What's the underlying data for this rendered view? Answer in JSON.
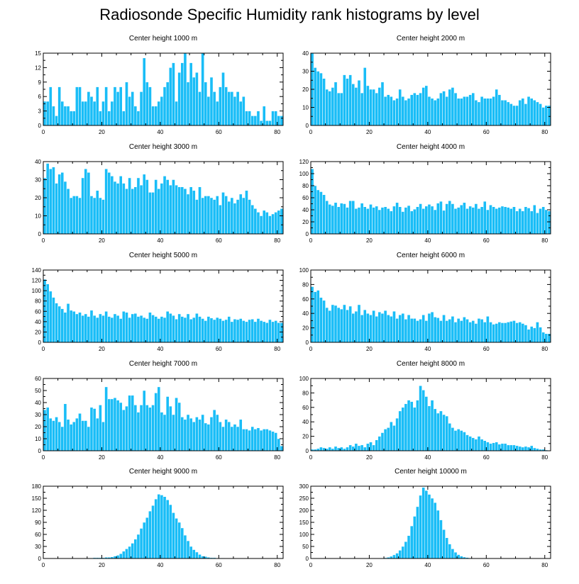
{
  "title": "Radiosonde Specific Humidity rank histograms by level",
  "style": {
    "bar_color": "#19bdf7",
    "bar_edge": "#ffffff",
    "axis_color": "#000000"
  },
  "chart_data": [
    {
      "type": "bar",
      "title": "Center height 1000 m",
      "xlabel": "",
      "ylabel": "",
      "xlim": [
        0,
        82
      ],
      "ylim": [
        0,
        15
      ],
      "xticks": [
        0,
        20,
        40,
        60,
        80
      ],
      "yticks": [
        0,
        3,
        6,
        9,
        12,
        15
      ],
      "values": [
        5,
        5,
        8,
        4,
        2,
        8,
        5,
        4,
        4,
        3,
        3,
        8,
        8,
        5,
        5,
        7,
        6,
        5,
        8,
        3,
        5,
        8,
        3,
        5,
        8,
        7,
        8,
        3,
        9,
        6,
        7,
        4,
        3,
        7,
        14,
        9,
        8,
        4,
        4,
        5,
        6,
        8,
        9,
        12,
        13,
        5,
        11,
        13,
        15,
        9,
        13,
        10,
        11,
        7,
        15,
        9,
        6,
        10,
        7,
        5,
        8,
        11,
        8,
        7,
        7,
        6,
        7,
        5,
        6,
        3,
        3,
        2,
        2,
        3,
        1,
        4,
        1,
        1,
        3,
        3,
        2,
        2
      ]
    },
    {
      "type": "bar",
      "title": "Center height 2000 m",
      "xlabel": "",
      "ylabel": "",
      "xlim": [
        0,
        82
      ],
      "ylim": [
        0,
        40
      ],
      "xticks": [
        0,
        20,
        40,
        60,
        80
      ],
      "yticks": [
        0,
        10,
        20,
        30,
        40
      ],
      "values": [
        40,
        32,
        30,
        29,
        26,
        20,
        19,
        21,
        24,
        18,
        18,
        28,
        26,
        28,
        23,
        21,
        25,
        18,
        32,
        22,
        20,
        20,
        18,
        21,
        24,
        16,
        17,
        16,
        14,
        15,
        20,
        16,
        14,
        15,
        17,
        18,
        17,
        18,
        21,
        22,
        16,
        15,
        14,
        15,
        18,
        19,
        16,
        20,
        21,
        18,
        15,
        15,
        16,
        16,
        17,
        18,
        14,
        13,
        16,
        15,
        15,
        15,
        16,
        20,
        17,
        14,
        14,
        13,
        12,
        11,
        11,
        14,
        15,
        12,
        16,
        15,
        14,
        13,
        12,
        10,
        11,
        11
      ]
    },
    {
      "type": "bar",
      "title": "Center height 3000 m",
      "xlabel": "",
      "ylabel": "",
      "xlim": [
        0,
        82
      ],
      "ylim": [
        0,
        40
      ],
      "xticks": [
        0,
        20,
        40,
        60,
        80
      ],
      "yticks": [
        0,
        10,
        20,
        30,
        40
      ],
      "values": [
        31,
        39,
        36,
        37,
        28,
        33,
        34,
        29,
        25,
        20,
        21,
        21,
        20,
        31,
        36,
        34,
        21,
        20,
        24,
        20,
        19,
        36,
        34,
        32,
        29,
        28,
        32,
        28,
        25,
        31,
        25,
        26,
        31,
        27,
        33,
        30,
        23,
        23,
        30,
        25,
        28,
        32,
        30,
        27,
        30,
        27,
        26,
        26,
        25,
        22,
        26,
        24,
        19,
        26,
        20,
        21,
        21,
        20,
        19,
        21,
        16,
        23,
        21,
        18,
        20,
        17,
        19,
        22,
        20,
        24,
        19,
        16,
        14,
        12,
        10,
        13,
        12,
        10,
        11,
        12,
        13,
        14
      ]
    },
    {
      "type": "bar",
      "title": "Center height 4000 m",
      "xlabel": "",
      "ylabel": "",
      "xlim": [
        0,
        82
      ],
      "ylim": [
        0,
        120
      ],
      "xticks": [
        0,
        20,
        40,
        60,
        80
      ],
      "yticks": [
        0,
        20,
        40,
        60,
        80,
        100,
        120
      ],
      "values": [
        108,
        80,
        73,
        70,
        65,
        55,
        49,
        47,
        52,
        45,
        51,
        50,
        44,
        55,
        55,
        42,
        44,
        51,
        45,
        42,
        49,
        44,
        46,
        40,
        44,
        45,
        42,
        38,
        46,
        52,
        45,
        37,
        44,
        47,
        38,
        41,
        45,
        50,
        42,
        46,
        49,
        46,
        40,
        51,
        54,
        39,
        50,
        55,
        50,
        42,
        44,
        48,
        52,
        42,
        46,
        44,
        50,
        42,
        45,
        54,
        40,
        48,
        45,
        42,
        44,
        46,
        45,
        44,
        42,
        45,
        38,
        42,
        38,
        45,
        43,
        38,
        48,
        35,
        42,
        45,
        40,
        38
      ]
    },
    {
      "type": "bar",
      "title": "Center height 5000 m",
      "xlabel": "",
      "ylabel": "",
      "xlim": [
        0,
        82
      ],
      "ylim": [
        0,
        140
      ],
      "xticks": [
        0,
        20,
        40,
        60,
        80
      ],
      "yticks": [
        0,
        20,
        40,
        60,
        80,
        100,
        120,
        140
      ],
      "values": [
        122,
        113,
        99,
        87,
        76,
        70,
        65,
        58,
        75,
        62,
        60,
        55,
        58,
        52,
        55,
        50,
        62,
        52,
        48,
        55,
        52,
        60,
        50,
        48,
        55,
        52,
        46,
        60,
        58,
        48,
        55,
        56,
        50,
        52,
        48,
        46,
        58,
        53,
        50,
        46,
        50,
        48,
        60,
        56,
        52,
        45,
        55,
        50,
        48,
        55,
        45,
        48,
        56,
        50,
        46,
        42,
        50,
        47,
        44,
        48,
        46,
        42,
        44,
        50,
        40,
        45,
        44,
        46,
        42,
        40,
        44,
        45,
        40,
        46,
        42,
        40,
        38,
        44,
        40,
        42,
        38,
        38
      ]
    },
    {
      "type": "bar",
      "title": "Center height 6000 m",
      "xlabel": "",
      "ylabel": "",
      "xlim": [
        0,
        82
      ],
      "ylim": [
        0,
        100
      ],
      "xticks": [
        0,
        20,
        40,
        60,
        80
      ],
      "yticks": [
        0,
        20,
        40,
        60,
        80,
        100
      ],
      "values": [
        77,
        70,
        72,
        62,
        58,
        48,
        44,
        52,
        51,
        48,
        46,
        52,
        45,
        50,
        40,
        43,
        52,
        38,
        45,
        40,
        38,
        44,
        36,
        42,
        40,
        44,
        38,
        36,
        43,
        33,
        38,
        40,
        32,
        38,
        33,
        33,
        30,
        32,
        38,
        30,
        40,
        42,
        35,
        34,
        30,
        38,
        30,
        32,
        36,
        28,
        33,
        30,
        35,
        32,
        28,
        30,
        26,
        33,
        32,
        28,
        36,
        28,
        25,
        26,
        28,
        27,
        27,
        28,
        29,
        30,
        27,
        28,
        26,
        24,
        18,
        22,
        20,
        28,
        21,
        14,
        12,
        12
      ]
    },
    {
      "type": "bar",
      "title": "Center height 7000 m",
      "xlabel": "",
      "ylabel": "",
      "xlim": [
        0,
        82
      ],
      "ylim": [
        0,
        60
      ],
      "xticks": [
        0,
        20,
        40,
        60,
        80
      ],
      "yticks": [
        0,
        10,
        20,
        30,
        40,
        50,
        60
      ],
      "values": [
        34,
        36,
        27,
        25,
        28,
        24,
        20,
        39,
        26,
        22,
        24,
        27,
        31,
        25,
        25,
        20,
        36,
        35,
        27,
        38,
        24,
        53,
        43,
        43,
        44,
        42,
        40,
        34,
        37,
        46,
        46,
        38,
        32,
        38,
        50,
        38,
        36,
        38,
        48,
        53,
        32,
        30,
        45,
        37,
        30,
        44,
        40,
        28,
        26,
        30,
        27,
        24,
        28,
        26,
        30,
        23,
        22,
        28,
        34,
        30,
        24,
        20,
        26,
        24,
        20,
        22,
        20,
        26,
        18,
        18,
        17,
        20,
        18,
        19,
        17,
        18,
        18,
        17,
        16,
        15,
        10,
        4
      ]
    },
    {
      "type": "bar",
      "title": "Center height 8000 m",
      "xlabel": "",
      "ylabel": "",
      "xlim": [
        0,
        82
      ],
      "ylim": [
        0,
        100
      ],
      "xticks": [
        0,
        20,
        40,
        60,
        80
      ],
      "yticks": [
        0,
        20,
        40,
        60,
        80,
        100
      ],
      "values": [
        2,
        2,
        3,
        5,
        4,
        3,
        5,
        3,
        6,
        4,
        5,
        3,
        5,
        8,
        6,
        10,
        7,
        8,
        5,
        10,
        12,
        8,
        15,
        20,
        25,
        30,
        32,
        40,
        35,
        45,
        55,
        60,
        65,
        70,
        68,
        60,
        70,
        90,
        84,
        75,
        62,
        70,
        58,
        52,
        55,
        50,
        48,
        38,
        32,
        28,
        30,
        28,
        26,
        22,
        20,
        18,
        16,
        20,
        16,
        14,
        12,
        10,
        11,
        12,
        9,
        10,
        10,
        8,
        8,
        8,
        7,
        6,
        5,
        6,
        5,
        7,
        4,
        3,
        2,
        2,
        1,
        0
      ]
    },
    {
      "type": "bar",
      "title": "Center height 9000 m",
      "xlabel": "",
      "ylabel": "",
      "xlim": [
        0,
        82
      ],
      "ylim": [
        0,
        180
      ],
      "xticks": [
        0,
        20,
        40,
        60,
        80
      ],
      "yticks": [
        0,
        30,
        60,
        90,
        120,
        150,
        180
      ],
      "values": [
        0,
        0,
        0,
        0,
        0,
        0,
        0,
        0,
        0,
        0,
        0,
        0,
        0,
        0,
        1,
        1,
        1,
        2,
        2,
        2,
        2,
        3,
        3,
        4,
        6,
        8,
        12,
        18,
        24,
        30,
        38,
        48,
        60,
        75,
        90,
        102,
        118,
        132,
        148,
        160,
        158,
        154,
        146,
        134,
        114,
        100,
        90,
        76,
        58,
        44,
        30,
        22,
        16,
        10,
        6,
        5,
        3,
        2,
        2,
        1,
        1,
        1,
        0,
        0,
        0,
        0,
        0,
        0,
        0,
        0,
        0,
        0,
        0,
        0,
        0,
        0,
        0,
        0,
        0,
        0,
        0,
        0
      ]
    },
    {
      "type": "bar",
      "title": "Center height 10000 m",
      "xlabel": "",
      "ylabel": "",
      "xlim": [
        0,
        82
      ],
      "ylim": [
        0,
        300
      ],
      "xticks": [
        0,
        20,
        40,
        60,
        80
      ],
      "yticks": [
        0,
        50,
        100,
        150,
        200,
        250,
        300
      ],
      "values": [
        0,
        0,
        0,
        0,
        0,
        0,
        0,
        0,
        0,
        0,
        0,
        0,
        0,
        0,
        0,
        0,
        0,
        0,
        0,
        0,
        0,
        0,
        0,
        1,
        2,
        3,
        5,
        9,
        15,
        22,
        34,
        50,
        70,
        95,
        135,
        175,
        215,
        262,
        295,
        282,
        266,
        250,
        232,
        200,
        160,
        120,
        86,
        60,
        40,
        26,
        16,
        10,
        6,
        4,
        2,
        1,
        1,
        0,
        0,
        0,
        0,
        0,
        0,
        0,
        0,
        0,
        0,
        0,
        0,
        0,
        0,
        0,
        0,
        0,
        0,
        0,
        0,
        0
      ]
    }
  ]
}
